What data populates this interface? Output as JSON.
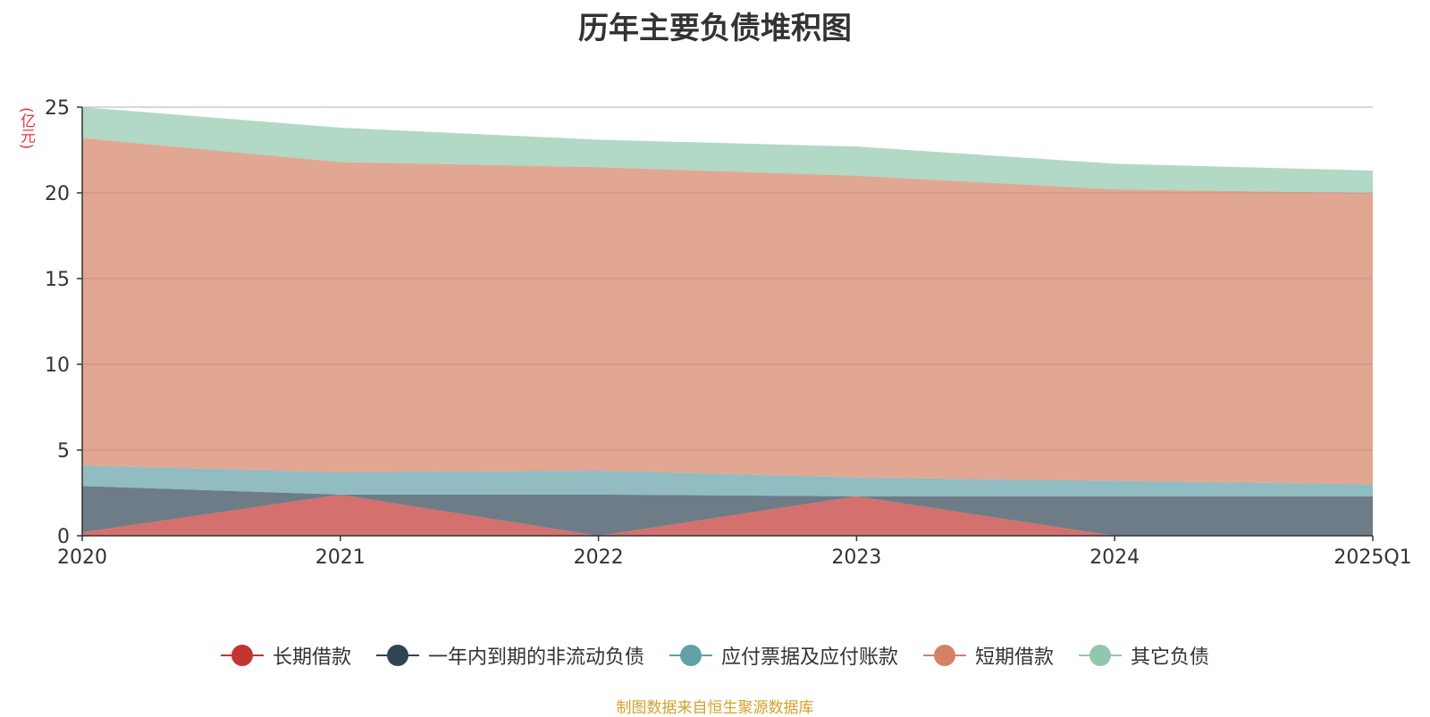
{
  "title": "历年主要负债堆积图",
  "unit": "(亿元)",
  "source": "制图数据来自恒生聚源数据库",
  "chart_data": {
    "type": "area",
    "stacked": true,
    "title": "历年主要负债堆积图",
    "ylabel": "(亿元)",
    "ylim": [
      0,
      25
    ],
    "yticks": [
      0,
      5,
      10,
      15,
      20,
      25
    ],
    "x": [
      "2020",
      "2021",
      "2022",
      "2023",
      "2024",
      "2025Q1"
    ],
    "grid": true,
    "legend_position": "bottom",
    "series": [
      {
        "name": "长期借款",
        "color": "#c23531",
        "values": [
          0.2,
          2.4,
          0.0,
          2.3,
          0.0,
          0.0
        ]
      },
      {
        "name": "一年内到期的非流动负债",
        "color": "#2f4554",
        "values": [
          2.7,
          0.0,
          2.4,
          0.0,
          2.3,
          2.3
        ]
      },
      {
        "name": "应付票据及应付账款",
        "color": "#61a0a8",
        "values": [
          1.2,
          1.3,
          1.4,
          1.1,
          0.9,
          0.7
        ]
      },
      {
        "name": "短期借款",
        "color": "#d48265",
        "values": [
          19.1,
          18.1,
          17.7,
          17.6,
          17.0,
          17.0
        ]
      },
      {
        "name": "其它负债",
        "color": "#91c7ae",
        "values": [
          1.8,
          2.0,
          1.6,
          1.7,
          1.5,
          1.3
        ]
      }
    ]
  }
}
